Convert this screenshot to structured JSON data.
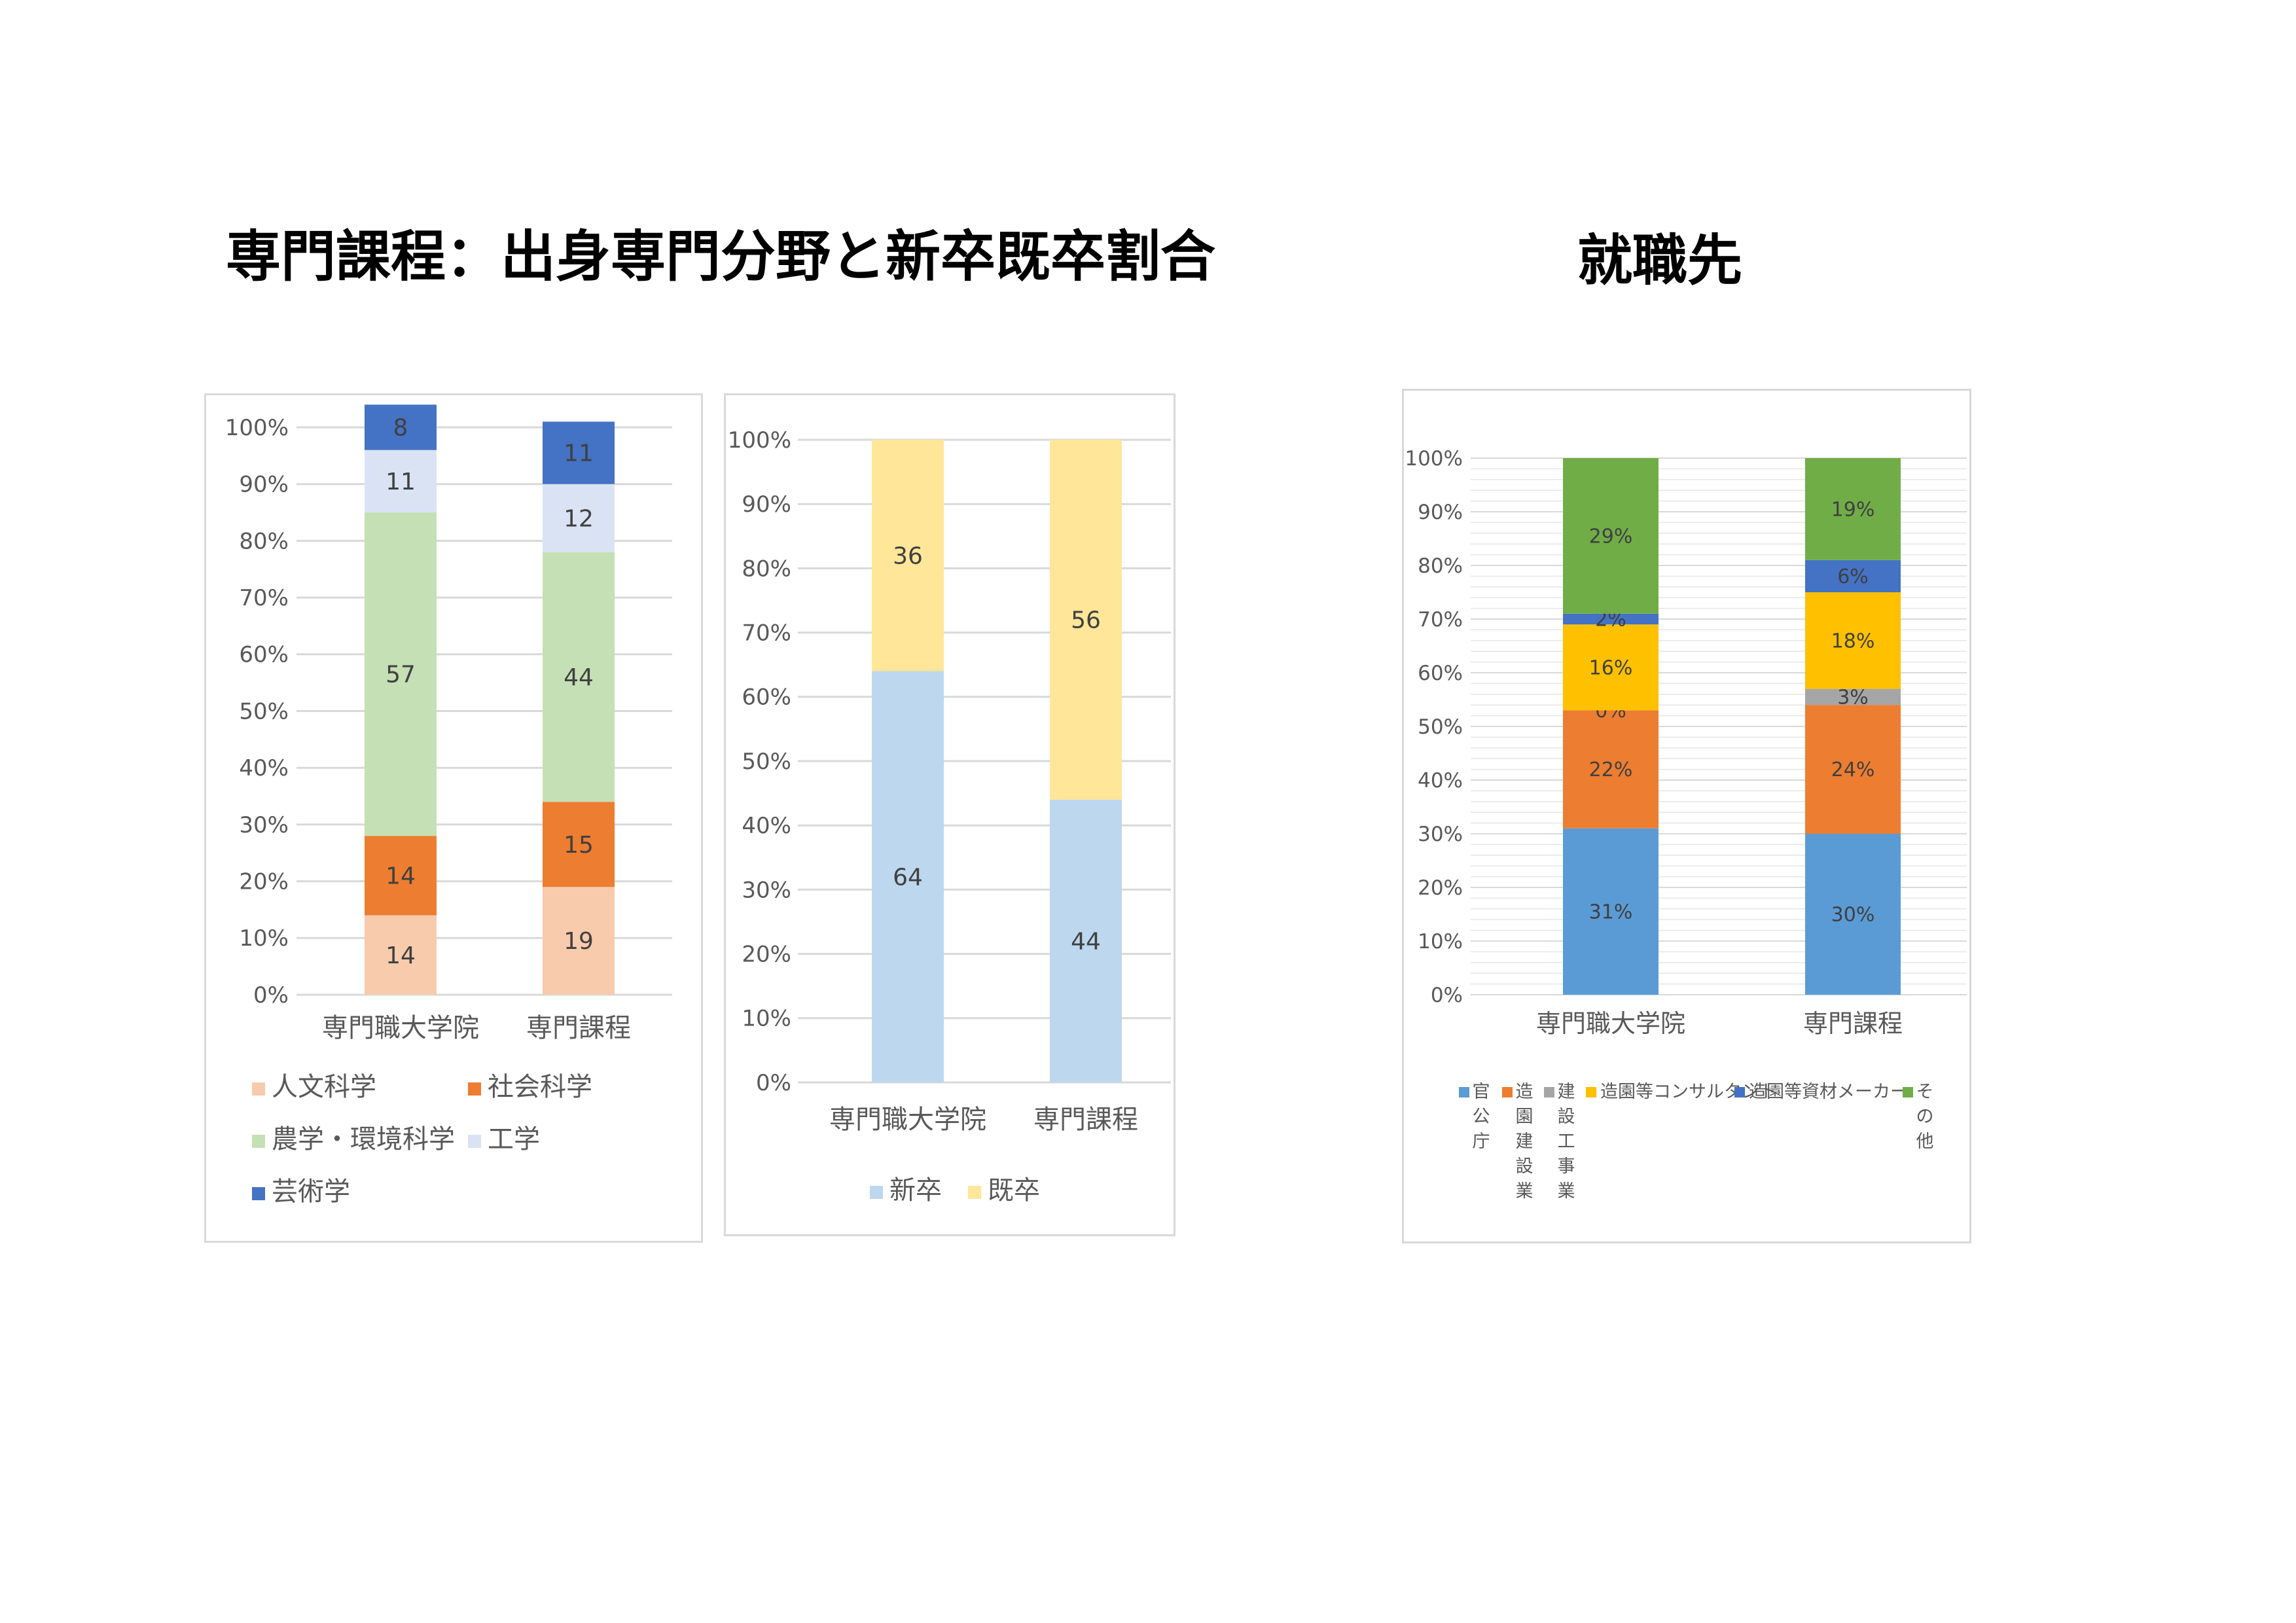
{
  "page": {
    "left_title": "専門課程：出身専門分野と新卒既卒割合",
    "right_title": "就職先"
  },
  "chart_data": [
    {
      "type": "bar",
      "stacked": true,
      "categories": [
        "専門職大学院",
        "専門課程"
      ],
      "series": [
        {
          "name": "人文科学",
          "values": [
            14,
            19
          ],
          "color": "#f8cbad"
        },
        {
          "name": "社会科学",
          "values": [
            14,
            15
          ],
          "color": "#ed7d31"
        },
        {
          "name": "農学・環境科学",
          "values": [
            57,
            44
          ],
          "color": "#c5e0b4"
        },
        {
          "name": "工学",
          "values": [
            11,
            12
          ],
          "color": "#dae3f3"
        },
        {
          "name": "芸術学",
          "values": [
            8,
            11
          ],
          "color": "#4472c4"
        }
      ],
      "ylim": [
        0,
        100
      ],
      "y_ticks": [
        "0%",
        "10%",
        "20%",
        "30%",
        "40%",
        "50%",
        "60%",
        "70%",
        "80%",
        "90%",
        "100%"
      ],
      "title": "",
      "xlabel": "",
      "ylabel": "",
      "grid": true,
      "legend": "bottom"
    },
    {
      "type": "bar",
      "stacked": true,
      "categories": [
        "専門職大学院",
        "専門課程"
      ],
      "series": [
        {
          "name": "新卒",
          "values": [
            64,
            44
          ],
          "color": "#bdd7ee"
        },
        {
          "name": "既卒",
          "values": [
            36,
            56
          ],
          "color": "#ffe699"
        }
      ],
      "ylim": [
        0,
        100
      ],
      "y_ticks": [
        "0%",
        "10%",
        "20%",
        "30%",
        "40%",
        "50%",
        "60%",
        "70%",
        "80%",
        "90%",
        "100%"
      ],
      "title": "",
      "xlabel": "",
      "ylabel": "",
      "grid": true,
      "legend": "bottom"
    },
    {
      "type": "bar",
      "stacked": true,
      "categories": [
        "専門職大学院",
        "専門課程"
      ],
      "series": [
        {
          "name": "官公庁",
          "values": [
            31,
            30
          ],
          "labels": [
            "31%",
            "30%"
          ],
          "color": "#5b9bd5"
        },
        {
          "name": "造園建設業",
          "values": [
            22,
            24
          ],
          "labels": [
            "22%",
            "24%"
          ],
          "color": "#ed7d31"
        },
        {
          "name": "建設工事業",
          "values": [
            0,
            3
          ],
          "labels": [
            "0%",
            "3%"
          ],
          "color": "#a5a5a5"
        },
        {
          "name": "造園等コンサルタント",
          "values": [
            16,
            18
          ],
          "labels": [
            "16%",
            "18%"
          ],
          "color": "#ffc000"
        },
        {
          "name": "造園等資材メーカー",
          "values": [
            2,
            6
          ],
          "labels": [
            "2%",
            "6%"
          ],
          "color": "#4472c4"
        },
        {
          "name": "その他",
          "values": [
            29,
            19
          ],
          "labels": [
            "29%",
            "19%"
          ],
          "color": "#70ad47"
        }
      ],
      "ylim": [
        0,
        100
      ],
      "y_ticks": [
        "0%",
        "10%",
        "20%",
        "30%",
        "40%",
        "50%",
        "60%",
        "70%",
        "80%",
        "90%",
        "100%"
      ],
      "title": "",
      "xlabel": "",
      "ylabel": "",
      "grid": true,
      "legend": "bottom"
    }
  ]
}
